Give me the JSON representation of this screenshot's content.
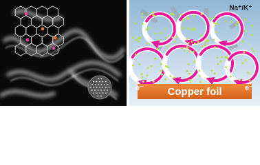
{
  "right_panel": {
    "ion_label": "Na⁺/K⁺",
    "electron_left": "e⁻",
    "electron_right": "e⁻",
    "electrode_label": "Copper foil"
  }
}
